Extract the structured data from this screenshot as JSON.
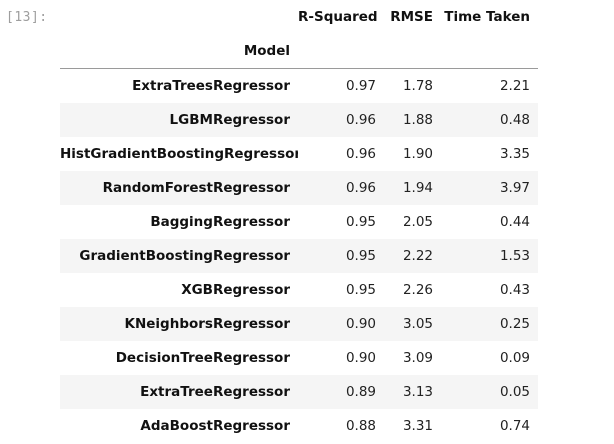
{
  "cell": {
    "prompt": "[13]:"
  },
  "table": {
    "index_name": "Model",
    "columns": [
      "R-Squared",
      "RMSE",
      "Time Taken"
    ],
    "rows": [
      {
        "model": "ExtraTreesRegressor",
        "r2": "0.97",
        "rmse": "1.78",
        "time": "2.21"
      },
      {
        "model": "LGBMRegressor",
        "r2": "0.96",
        "rmse": "1.88",
        "time": "0.48"
      },
      {
        "model": "HistGradientBoostingRegressor",
        "r2": "0.96",
        "rmse": "1.90",
        "time": "3.35"
      },
      {
        "model": "RandomForestRegressor",
        "r2": "0.96",
        "rmse": "1.94",
        "time": "3.97"
      },
      {
        "model": "BaggingRegressor",
        "r2": "0.95",
        "rmse": "2.05",
        "time": "0.44"
      },
      {
        "model": "GradientBoostingRegressor",
        "r2": "0.95",
        "rmse": "2.22",
        "time": "1.53"
      },
      {
        "model": "XGBRegressor",
        "r2": "0.95",
        "rmse": "2.26",
        "time": "0.43"
      },
      {
        "model": "KNeighborsRegressor",
        "r2": "0.90",
        "rmse": "3.05",
        "time": "0.25"
      },
      {
        "model": "DecisionTreeRegressor",
        "r2": "0.90",
        "rmse": "3.09",
        "time": "0.09"
      },
      {
        "model": "ExtraTreeRegressor",
        "r2": "0.89",
        "rmse": "3.13",
        "time": "0.05"
      },
      {
        "model": "AdaBoostRegressor",
        "r2": "0.88",
        "rmse": "3.31",
        "time": "0.74"
      }
    ]
  },
  "colors": {
    "prompt": "#9e9e9e",
    "stripe": "#f5f5f5",
    "header_rule": "#9a9a9a"
  }
}
